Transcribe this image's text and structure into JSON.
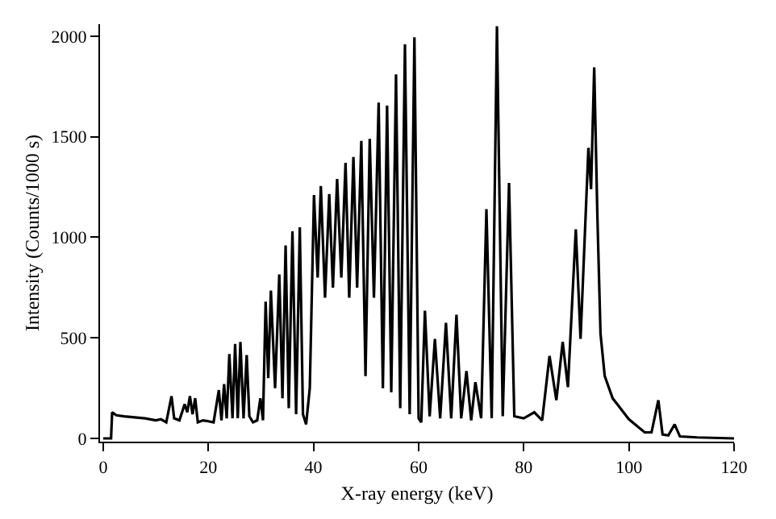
{
  "chart_data": {
    "type": "line",
    "xlabel": "X-ray energy (keV)",
    "ylabel": "Intensity (Counts/1000 s)",
    "x": [
      0,
      1.5,
      1.7,
      2.5,
      4,
      6,
      8,
      10,
      11,
      12,
      13,
      13.5,
      14.5,
      15.5,
      16,
      16.5,
      17,
      17.5,
      18,
      19,
      20,
      21,
      22,
      22.5,
      23,
      23.5,
      24,
      24.6,
      25.1,
      25.6,
      26.1,
      26.7,
      27.3,
      27.8,
      28.5,
      29.3,
      29.9,
      30.4,
      30.9,
      31.4,
      31.9,
      32.7,
      33.5,
      34.1,
      34.7,
      35.3,
      36,
      36.7,
      37.4,
      38,
      38.6,
      39.3,
      40.1,
      40.8,
      41.4,
      42.2,
      43,
      43.7,
      44.5,
      45.3,
      46.1,
      46.8,
      47.6,
      48.3,
      49.1,
      49.9,
      50.7,
      51.5,
      52.4,
      53.2,
      54,
      54.8,
      55.7,
      56.5,
      57.4,
      58.3,
      59.2,
      60,
      60.5,
      61.2,
      62.1,
      63.1,
      64.1,
      65.2,
      66.2,
      67.2,
      68.1,
      69.1,
      70,
      70.8,
      71.9,
      72.9,
      73.9,
      74.9,
      76,
      77.2,
      78.2,
      80,
      82,
      83.5,
      84.9,
      86.2,
      87.4,
      88.4,
      89.9,
      90.8,
      92.3,
      92.8,
      93.4,
      94,
      94.6,
      95.4,
      96.9,
      100,
      103,
      104.3,
      105.6,
      106.4,
      107.5,
      108.7,
      109.7,
      113,
      120
    ],
    "series": [
      {
        "color": "#000000",
        "values": [
          0,
          0,
          130,
          115,
          110,
          105,
          100,
          90,
          95,
          80,
          210,
          100,
          90,
          170,
          130,
          210,
          120,
          200,
          80,
          90,
          85,
          80,
          240,
          90,
          270,
          100,
          420,
          100,
          470,
          100,
          480,
          100,
          415,
          110,
          80,
          90,
          200,
          90,
          680,
          300,
          735,
          250,
          815,
          200,
          960,
          150,
          1030,
          120,
          1050,
          120,
          70,
          250,
          1210,
          800,
          1255,
          700,
          1215,
          750,
          1290,
          800,
          1370,
          700,
          1400,
          750,
          1480,
          310,
          1490,
          700,
          1670,
          250,
          1655,
          230,
          1810,
          150,
          1960,
          120,
          1995,
          100,
          80,
          635,
          110,
          495,
          100,
          575,
          100,
          615,
          100,
          335,
          90,
          280,
          100,
          1140,
          100,
          2050,
          110,
          1270,
          110,
          100,
          130,
          90,
          410,
          190,
          480,
          255,
          1040,
          495,
          1445,
          1240,
          1845,
          1110,
          520,
          310,
          200,
          95,
          30,
          30,
          190,
          20,
          15,
          70,
          10,
          5,
          0
        ]
      }
    ],
    "xlim": [
      -0.6,
      120
    ],
    "ylim": [
      -16,
      2060
    ],
    "xticks": [
      0,
      20,
      40,
      60,
      80,
      100,
      120
    ],
    "yticks": [
      0,
      500,
      1000,
      1500,
      2000
    ],
    "marker": "none",
    "line_style": "solid"
  }
}
